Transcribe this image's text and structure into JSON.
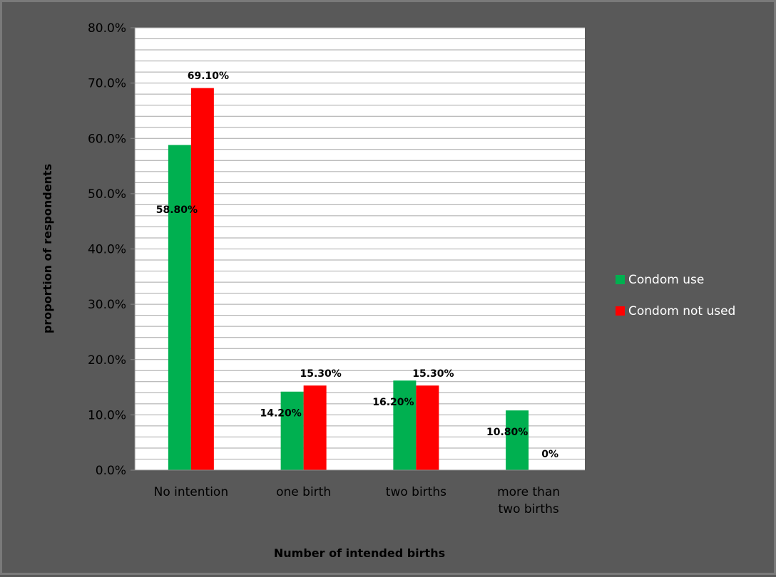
{
  "chart_data": {
    "type": "bar",
    "categories": [
      "No intention",
      "one birth",
      "two births",
      "more than two births"
    ],
    "category_lines": [
      [
        "No intention"
      ],
      [
        "one birth"
      ],
      [
        "two births"
      ],
      [
        "more than",
        "two births"
      ]
    ],
    "series": [
      {
        "name": "Condom use",
        "color": "#00b050",
        "values": [
          58.8,
          14.2,
          16.2,
          10.8
        ],
        "labels": [
          "58.80%",
          "14.20%",
          "16.20%",
          "10.80%"
        ]
      },
      {
        "name": "Condom not used",
        "color": "#ff0000",
        "values": [
          69.1,
          15.3,
          15.3,
          0
        ],
        "labels": [
          "69.10%",
          "15.30%",
          "15.30%",
          "0%"
        ]
      }
    ],
    "xlabel": "Number of intended births",
    "ylabel": "proportion of respondents",
    "ylim": [
      0,
      80
    ],
    "yticks": [
      "0.0%",
      "10.0%",
      "20.0%",
      "30.0%",
      "40.0%",
      "50.0%",
      "60.0%",
      "70.0%",
      "80.0%"
    ],
    "grid": true,
    "legend_position": "right",
    "colors": {
      "background": "#595959",
      "plot_area": "#ffffff",
      "gridline": "#a6a6a6"
    }
  }
}
